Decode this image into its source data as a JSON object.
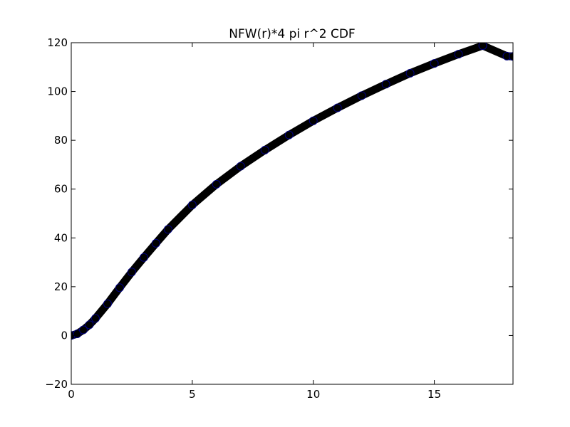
{
  "chart_data": {
    "type": "scatter",
    "title": "NFW(r)*4 pi r^2 CDF",
    "xlabel": "",
    "ylabel": "",
    "xlim": [
      0,
      18.25
    ],
    "ylim": [
      -20,
      120
    ],
    "grid": false,
    "legend": "none",
    "x_ticks": [
      0,
      5,
      10,
      15
    ],
    "y_ticks": [
      -20,
      0,
      20,
      40,
      60,
      80,
      100,
      120
    ],
    "x_tick_labels": [
      "0",
      "5",
      "10",
      "15"
    ],
    "y_tick_labels": [
      "−20",
      "0",
      "20",
      "40",
      "60",
      "80",
      "100",
      "120"
    ],
    "series": [
      {
        "marker_color": "#000000",
        "edge_color": "#000080",
        "x": [
          0,
          0.25,
          0.5,
          0.75,
          1,
          1.5,
          2,
          2.5,
          3,
          3.5,
          4,
          5,
          6,
          7,
          8,
          9,
          10,
          11,
          12,
          13,
          14,
          15,
          16,
          17,
          18,
          18.25
        ],
        "y": [
          0,
          0.7,
          2.3,
          4.4,
          7.0,
          13.0,
          19.6,
          26.0,
          32.0,
          37.8,
          43.5,
          53.5,
          62.0,
          69.4,
          76.0,
          82.2,
          88.0,
          93.3,
          98.3,
          103.0,
          107.5,
          111.5,
          115.3,
          118.8,
          114.5,
          114.4
        ]
      }
    ]
  }
}
